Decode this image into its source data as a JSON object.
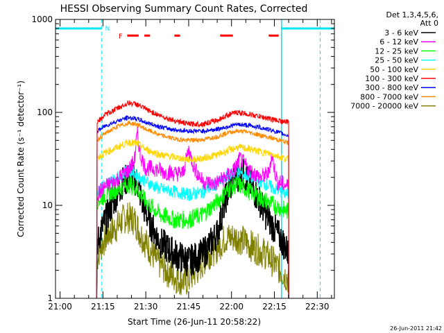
{
  "chart_data": {
    "type": "line",
    "title": "HESSI Observing Summary Count Rates, Corrected",
    "xlabel": "Start Time (26-Jun-11 20:58:22)",
    "ylabel": "Corrected Count Rate (s⁻¹ detector⁻¹)",
    "footer_date": "26-Jun-2011 21:42",
    "legend_header": [
      "Det 1,3,4,5,6,",
      "Att 0"
    ],
    "x_ticks": [
      {
        "t": 0,
        "label": "21:00"
      },
      {
        "t": 15,
        "label": "21:15"
      },
      {
        "t": 30,
        "label": "21:30"
      },
      {
        "t": 45,
        "label": "21:45"
      },
      {
        "t": 60,
        "label": "22:00"
      },
      {
        "t": 75,
        "label": "22:15"
      },
      {
        "t": 90,
        "label": "22:30"
      }
    ],
    "x_unit": "minutes after 21:00",
    "xlim": [
      -1.6,
      96
    ],
    "ylim": [
      1,
      1000
    ],
    "y_scale": "log",
    "y_ticks": [
      {
        "v": 1,
        "label": "1"
      },
      {
        "v": 10,
        "label": "10"
      },
      {
        "v": 100,
        "label": "100"
      },
      {
        "v": 1000,
        "label": "1000"
      }
    ],
    "series": [
      {
        "name": "3 - 6 keV",
        "color": "#000000",
        "values": [
          [
            12.8,
            3.5
          ],
          [
            14,
            5
          ],
          [
            18,
            10
          ],
          [
            22,
            18
          ],
          [
            25,
            20
          ],
          [
            27,
            18
          ],
          [
            29,
            10
          ],
          [
            32,
            6
          ],
          [
            35,
            4
          ],
          [
            40,
            3
          ],
          [
            45,
            2.5
          ],
          [
            50,
            3
          ],
          [
            55,
            5
          ],
          [
            58,
            12
          ],
          [
            61,
            20
          ],
          [
            64,
            22
          ],
          [
            67,
            16
          ],
          [
            70,
            11
          ],
          [
            72,
            8
          ],
          [
            76,
            5
          ],
          [
            78,
            4
          ],
          [
            80,
            3
          ]
        ]
      },
      {
        "name": "6 - 12 keV",
        "color": "#ff00ff",
        "values": [
          [
            12.8,
            13
          ],
          [
            16,
            16
          ],
          [
            20,
            19
          ],
          [
            24,
            24
          ],
          [
            26,
            30
          ],
          [
            27,
            60
          ],
          [
            28,
            35
          ],
          [
            30,
            25
          ],
          [
            33,
            25
          ],
          [
            36,
            23
          ],
          [
            40,
            22
          ],
          [
            43,
            22
          ],
          [
            45,
            40
          ],
          [
            47,
            25
          ],
          [
            50,
            18
          ],
          [
            54,
            17
          ],
          [
            58,
            20
          ],
          [
            61,
            24
          ],
          [
            63,
            32
          ],
          [
            66,
            24
          ],
          [
            70,
            20
          ],
          [
            73,
            22
          ],
          [
            74,
            35
          ],
          [
            76,
            18
          ],
          [
            80,
            16
          ]
        ]
      },
      {
        "name": "12 - 25 keV",
        "color": "#00ff00",
        "values": [
          [
            12.8,
            11
          ],
          [
            16,
            13
          ],
          [
            20,
            15
          ],
          [
            24,
            17
          ],
          [
            27,
            15
          ],
          [
            30,
            11
          ],
          [
            35,
            8
          ],
          [
            40,
            7
          ],
          [
            45,
            7
          ],
          [
            50,
            8
          ],
          [
            55,
            11
          ],
          [
            59,
            15
          ],
          [
            62,
            17
          ],
          [
            65,
            15
          ],
          [
            70,
            12
          ],
          [
            75,
            10
          ],
          [
            80,
            8.5
          ]
        ]
      },
      {
        "name": "25 - 50 keV",
        "color": "#00ffff",
        "values": [
          [
            12.8,
            14
          ],
          [
            16,
            17
          ],
          [
            20,
            20
          ],
          [
            24,
            24
          ],
          [
            27,
            21
          ],
          [
            30,
            18
          ],
          [
            35,
            15
          ],
          [
            40,
            14
          ],
          [
            45,
            13
          ],
          [
            50,
            14
          ],
          [
            55,
            17
          ],
          [
            59,
            21
          ],
          [
            62,
            23
          ],
          [
            65,
            21
          ],
          [
            70,
            18
          ],
          [
            75,
            15
          ],
          [
            80,
            13
          ]
        ]
      },
      {
        "name": "50 - 100 keV",
        "color": "#ffd700",
        "values": [
          [
            12.8,
            32
          ],
          [
            16,
            37
          ],
          [
            20,
            42
          ],
          [
            24,
            48
          ],
          [
            27,
            46
          ],
          [
            30,
            40
          ],
          [
            35,
            35
          ],
          [
            40,
            33
          ],
          [
            45,
            31
          ],
          [
            50,
            32
          ],
          [
            55,
            35
          ],
          [
            59,
            39
          ],
          [
            62,
            42
          ],
          [
            65,
            41
          ],
          [
            70,
            38
          ],
          [
            75,
            35
          ],
          [
            80,
            31
          ]
        ]
      },
      {
        "name": "100 - 300 keV",
        "color": "#ff0000",
        "values": [
          [
            12.8,
            78
          ],
          [
            16,
            95
          ],
          [
            20,
            110
          ],
          [
            24,
            127
          ],
          [
            27,
            122
          ],
          [
            30,
            108
          ],
          [
            35,
            92
          ],
          [
            40,
            82
          ],
          [
            45,
            75
          ],
          [
            50,
            75
          ],
          [
            55,
            82
          ],
          [
            59,
            95
          ],
          [
            62,
            100
          ],
          [
            65,
            97
          ],
          [
            70,
            90
          ],
          [
            75,
            83
          ],
          [
            80,
            78
          ]
        ]
      },
      {
        "name": "300 - 800 keV",
        "color": "#0000ff",
        "values": [
          [
            12.8,
            62
          ],
          [
            16,
            72
          ],
          [
            20,
            81
          ],
          [
            24,
            88
          ],
          [
            27,
            85
          ],
          [
            30,
            78
          ],
          [
            35,
            70
          ],
          [
            40,
            65
          ],
          [
            45,
            63
          ],
          [
            50,
            63
          ],
          [
            55,
            66
          ],
          [
            59,
            71
          ],
          [
            62,
            74
          ],
          [
            65,
            73
          ],
          [
            70,
            69
          ],
          [
            75,
            63
          ],
          [
            80,
            56
          ]
        ]
      },
      {
        "name": "800 - 7000 keV",
        "color": "#ff8c00",
        "values": [
          [
            12.8,
            50
          ],
          [
            16,
            60
          ],
          [
            20,
            70
          ],
          [
            24,
            77
          ],
          [
            27,
            74
          ],
          [
            30,
            66
          ],
          [
            35,
            57
          ],
          [
            40,
            52
          ],
          [
            45,
            50
          ],
          [
            50,
            51
          ],
          [
            55,
            55
          ],
          [
            59,
            61
          ],
          [
            62,
            63
          ],
          [
            65,
            62
          ],
          [
            70,
            57
          ],
          [
            75,
            52
          ],
          [
            80,
            47
          ]
        ]
      },
      {
        "name": "7000 - 20000 keV",
        "color": "#808000",
        "values": [
          [
            12.8,
            2.5
          ],
          [
            14,
            3.5
          ],
          [
            17,
            5
          ],
          [
            20,
            6
          ],
          [
            23,
            7.5
          ],
          [
            26,
            7
          ],
          [
            28,
            5
          ],
          [
            31,
            3.5
          ],
          [
            34,
            2.5
          ],
          [
            37,
            2
          ],
          [
            40,
            1.7
          ],
          [
            44,
            1.5
          ],
          [
            48,
            2
          ],
          [
            52,
            3
          ],
          [
            55,
            3.5
          ],
          [
            58,
            4.5
          ],
          [
            62,
            4.5
          ],
          [
            65,
            4
          ],
          [
            68,
            3.5
          ],
          [
            72,
            3
          ],
          [
            76,
            2.2
          ],
          [
            80,
            1.6
          ]
        ]
      }
    ],
    "annotations": {
      "night_label": "N",
      "flare_label": "F"
    }
  }
}
